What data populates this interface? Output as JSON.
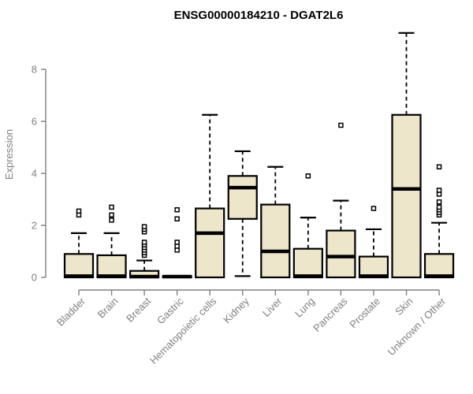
{
  "chart_data": {
    "type": "boxplot",
    "title": "ENSG00000184210 - DGAT2L6",
    "ylabel": "Expression",
    "yticks": [
      0,
      2,
      4,
      6,
      8
    ],
    "ylim": [
      0,
      9.6
    ],
    "grid": false,
    "legend": "none",
    "categories": [
      "Bladder",
      "Brain",
      "Breast",
      "Gastric",
      "Hematopoietic cells",
      "Kidney",
      "Liver",
      "Lung",
      "Pancreas",
      "Prostate",
      "Skin",
      "Unknown / Other"
    ],
    "boxes": [
      {
        "category": "Bladder",
        "low": 0,
        "q1": 0,
        "median": 0.05,
        "q3": 0.9,
        "high": 1.7,
        "outliers": [
          2.4,
          2.55
        ]
      },
      {
        "category": "Brain",
        "low": 0,
        "q1": 0,
        "median": 0.05,
        "q3": 0.85,
        "high": 1.7,
        "outliers": [
          2.2,
          2.4,
          2.7
        ]
      },
      {
        "category": "Breast",
        "low": 0,
        "q1": 0,
        "median": 0.03,
        "q3": 0.25,
        "high": 0.65,
        "outliers": [
          0.85,
          0.95,
          1.05,
          1.15,
          1.25,
          1.35,
          1.75,
          1.85,
          1.95
        ]
      },
      {
        "category": "Gastric",
        "low": 0,
        "q1": 0,
        "median": 0.03,
        "q3": 0.05,
        "high": 0.05,
        "outliers": [
          1.05,
          1.2,
          1.35,
          2.25,
          2.6
        ]
      },
      {
        "category": "Hematopoietic cells",
        "low": 0,
        "q1": 0,
        "median": 1.7,
        "q3": 2.65,
        "high": 6.25,
        "outliers": []
      },
      {
        "category": "Kidney",
        "low": 0.05,
        "q1": 2.25,
        "median": 3.45,
        "q3": 3.9,
        "high": 4.85,
        "outliers": []
      },
      {
        "category": "Liver",
        "low": 0,
        "q1": 0,
        "median": 1.0,
        "q3": 2.8,
        "high": 4.25,
        "outliers": []
      },
      {
        "category": "Lung",
        "low": 0,
        "q1": 0,
        "median": 0.05,
        "q3": 1.1,
        "high": 2.3,
        "outliers": [
          3.9
        ]
      },
      {
        "category": "Pancreas",
        "low": 0,
        "q1": 0,
        "median": 0.8,
        "q3": 1.8,
        "high": 2.95,
        "outliers": [
          5.85
        ]
      },
      {
        "category": "Prostate",
        "low": 0,
        "q1": 0,
        "median": 0.05,
        "q3": 0.8,
        "high": 1.85,
        "outliers": [
          2.65
        ]
      },
      {
        "category": "Skin",
        "low": 0,
        "q1": 0,
        "median": 3.4,
        "q3": 6.25,
        "high": 9.4,
        "outliers": []
      },
      {
        "category": "Unknown / Other",
        "low": 0,
        "q1": 0,
        "median": 0.05,
        "q3": 0.9,
        "high": 2.1,
        "outliers": [
          2.4,
          2.5,
          2.6,
          2.7,
          2.9,
          3.2,
          3.35,
          4.25
        ]
      }
    ],
    "colors": {
      "box_fill": "#EDE6CB",
      "box_border": "#000000",
      "median": "#000000",
      "whisker": "#000000",
      "outlier_fill": "#ffffff",
      "axis": "#808080",
      "tick_text": "#808080",
      "title": "#000000",
      "background": "#ffffff"
    }
  }
}
